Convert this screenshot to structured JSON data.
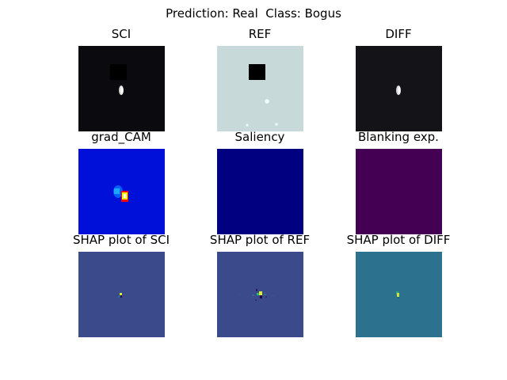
{
  "figure": {
    "suptitle": "Prediction: Real  Class: Bogus"
  },
  "panels": [
    {
      "title": "SCI",
      "colormap": "gray",
      "background": "#0b0b0f"
    },
    {
      "title": "REF",
      "colormap": "gray",
      "background": "#c7d9d9"
    },
    {
      "title": "DIFF",
      "colormap": "gray",
      "background": "#131318"
    },
    {
      "title": "grad_CAM",
      "colormap": "jet",
      "background": "#0010d8"
    },
    {
      "title": "Saliency",
      "colormap": "jet",
      "background": "#000080"
    },
    {
      "title": "Blanking exp.",
      "colormap": "viridis",
      "background": "#440154"
    },
    {
      "title": "SHAP plot of SCI",
      "colormap": "viridis",
      "background": "#3b4a8a"
    },
    {
      "title": "SHAP plot of REF",
      "colormap": "viridis",
      "background": "#3b4a8a"
    },
    {
      "title": "SHAP plot of DIFF",
      "colormap": "viridis",
      "background": "#2c728e"
    }
  ]
}
